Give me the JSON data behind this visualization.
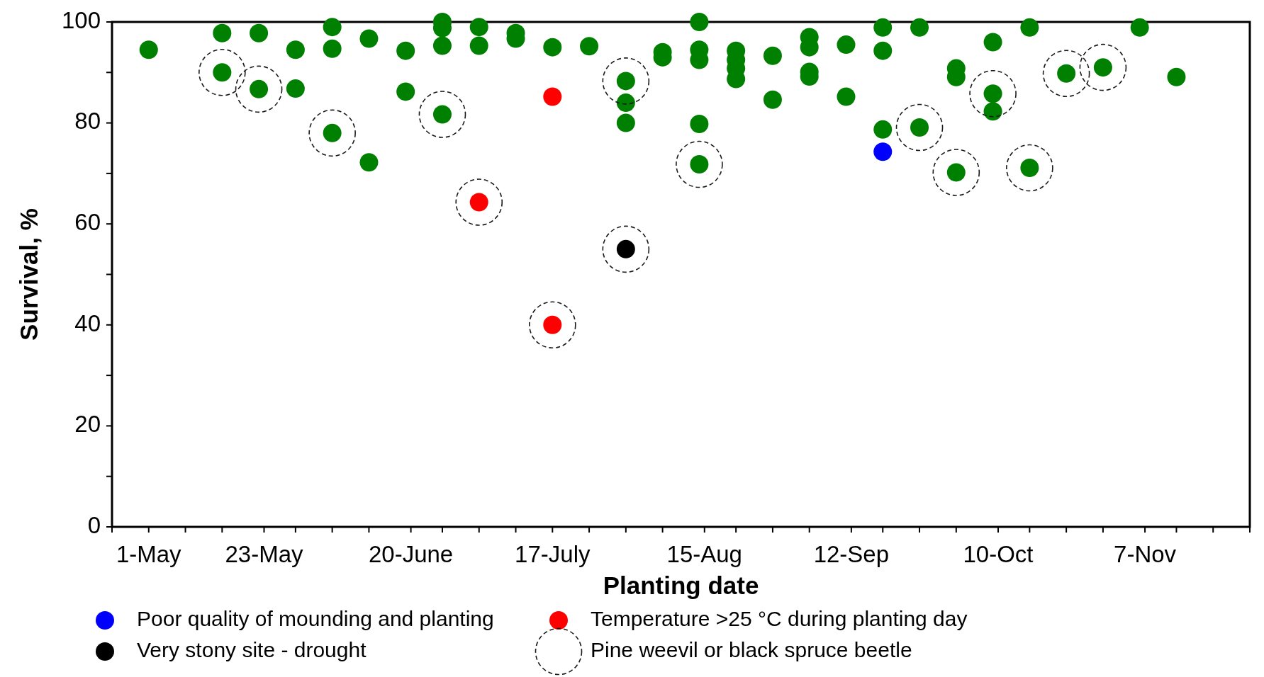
{
  "chart_data": {
    "type": "scatter",
    "xlabel": "Planting date",
    "ylabel": "Survival, %",
    "legend": "bottom",
    "marker": "circle",
    "xlim": [
      "--04-24",
      "--11-27"
    ],
    "xticks": [
      {
        "value": "--04-24",
        "label": null
      },
      {
        "value": "--05-01",
        "label": "1-May"
      },
      {
        "value": "--05-08",
        "label": null
      },
      {
        "value": "--05-15",
        "label": null
      },
      {
        "value": "--05-23",
        "label": "23-May"
      },
      {
        "value": "--05-29",
        "label": null
      },
      {
        "value": "--06-05",
        "label": null
      },
      {
        "value": "--06-12",
        "label": null
      },
      {
        "value": "--06-20",
        "label": "20-June"
      },
      {
        "value": "--06-26",
        "label": null
      },
      {
        "value": "--07-03",
        "label": null
      },
      {
        "value": "--07-10",
        "label": null
      },
      {
        "value": "--07-17",
        "label": "17-July"
      },
      {
        "value": "--07-24",
        "label": null
      },
      {
        "value": "--07-31",
        "label": null
      },
      {
        "value": "--08-07",
        "label": null
      },
      {
        "value": "--08-15",
        "label": "15-Aug"
      },
      {
        "value": "--08-21",
        "label": null
      },
      {
        "value": "--08-28",
        "label": null
      },
      {
        "value": "--09-04",
        "label": null
      },
      {
        "value": "--09-12",
        "label": "12-Sep"
      },
      {
        "value": "--09-18",
        "label": null
      },
      {
        "value": "--09-25",
        "label": null
      },
      {
        "value": "--10-02",
        "label": null
      },
      {
        "value": "--10-10",
        "label": "10-Oct"
      },
      {
        "value": "--10-16",
        "label": null
      },
      {
        "value": "--10-23",
        "label": null
      },
      {
        "value": "--10-30",
        "label": null
      },
      {
        "value": "--11-07",
        "label": "7-Nov"
      },
      {
        "value": "--11-13",
        "label": null
      },
      {
        "value": "--11-20",
        "label": null
      },
      {
        "value": "--11-27",
        "label": null
      }
    ],
    "ylim": [
      0,
      100
    ],
    "yticks": [
      0,
      {
        "value": 10,
        "label": null
      },
      20,
      {
        "value": 30,
        "label": null
      },
      40,
      {
        "value": 50,
        "label": null
      },
      60,
      {
        "value": 70,
        "label": null
      },
      80,
      {
        "value": 90,
        "label": null
      },
      100
    ],
    "series": [
      {
        "color": "#008000",
        "x": [
          "--05-01",
          "--05-15",
          "--05-15",
          "--05-22",
          "--05-22",
          "--05-29",
          "--05-29",
          "--06-05",
          "--06-05",
          "--06-05",
          "--06-12",
          "--06-12",
          "--06-19",
          "--06-19",
          "--06-26",
          "--06-26",
          "--06-26",
          "--06-26",
          "--07-03",
          "--07-03",
          "--07-10",
          "--07-10",
          "--07-17",
          "--07-24",
          "--07-31",
          "--07-31",
          "--07-31",
          "--08-07",
          "--08-07",
          "--08-14",
          "--08-14",
          "--08-14",
          "--08-14",
          "--08-14",
          "--08-21",
          "--08-21",
          "--08-21",
          "--08-21",
          "--08-28",
          "--08-28",
          "--09-04",
          "--09-04",
          "--09-04",
          "--09-04",
          "--09-11",
          "--09-11",
          "--09-18",
          "--09-18",
          "--09-18",
          "--09-25",
          "--09-25",
          "--10-02",
          "--10-02",
          "--10-02",
          "--10-09",
          "--10-09",
          "--10-09",
          "--10-16",
          "--10-16",
          "--10-23",
          "--10-30",
          "--11-06",
          "--11-13"
        ],
        "values": [
          94.5,
          97.8,
          90,
          97.8,
          86.7,
          94.5,
          86.8,
          99,
          94.7,
          78,
          96.7,
          72.2,
          94.3,
          86.2,
          100,
          98.8,
          95.3,
          81.7,
          99,
          95.3,
          97.8,
          96.7,
          95,
          95.2,
          88.3,
          84,
          80,
          94,
          93,
          100,
          94.5,
          92.5,
          79.8,
          71.8,
          94.3,
          92.5,
          90.8,
          88.7,
          93.3,
          84.6,
          97,
          95,
          90.1,
          89.2,
          95.5,
          85.2,
          98.9,
          94.3,
          78.7,
          98.9,
          79.1,
          90.8,
          89.1,
          70.2,
          96,
          85.8,
          82.3,
          98.9,
          71.1,
          89.8,
          91,
          98.9,
          89.1
        ]
      },
      {
        "name": "Poor quality of mounding and planting",
        "color": "#0000ff",
        "x": [
          "--09-18"
        ],
        "values": [
          74.3
        ]
      },
      {
        "name": "Very stony site - drought",
        "color": "#000000",
        "x": [
          "--07-31"
        ],
        "values": [
          55
        ]
      },
      {
        "name": "Temperature >25 °C during planting day",
        "color": "#ff0000",
        "x": [
          "--07-03",
          "--07-17",
          "--07-17"
        ],
        "values": [
          64.3,
          85.2,
          40
        ]
      },
      {
        "name": "Pine weevil or black spruce beetle",
        "color": "#1a1a1a",
        "line_style": "dashed",
        "x": [
          "--05-15",
          "--05-22",
          "--06-05",
          "--06-26",
          "--07-03",
          "--07-17",
          "--07-31",
          "--07-31",
          "--08-14",
          "--09-25",
          "--10-02",
          "--10-09",
          "--10-16",
          "--10-23",
          "--10-30"
        ],
        "values": [
          90,
          86.7,
          78,
          81.7,
          64.3,
          40,
          88.3,
          55,
          71.8,
          79.1,
          70.2,
          85.8,
          71.1,
          89.8,
          91
        ]
      }
    ]
  }
}
